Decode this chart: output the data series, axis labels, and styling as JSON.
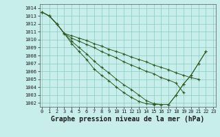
{
  "title": "Graphe pression niveau de la mer (hPa)",
  "background_color": "#c8eeec",
  "grid_color": "#88c8c0",
  "line_color": "#2d5a1e",
  "ylim": [
    1001.5,
    1014.5
  ],
  "xlim": [
    -0.3,
    23.3
  ],
  "yticks": [
    1002,
    1003,
    1004,
    1005,
    1006,
    1007,
    1008,
    1009,
    1010,
    1011,
    1012,
    1013,
    1014
  ],
  "xticks": [
    0,
    1,
    2,
    3,
    4,
    5,
    6,
    7,
    8,
    9,
    10,
    11,
    12,
    13,
    14,
    15,
    16,
    17,
    18,
    19,
    20,
    21,
    22,
    23
  ],
  "series": [
    [
      1013.5,
      1013.0,
      1012.0,
      1010.8,
      1009.5,
      1008.5,
      1007.5,
      1006.3,
      1005.5,
      1004.8,
      1004.0,
      1003.3,
      1002.7,
      1002.2,
      1001.9,
      1001.8,
      1001.8,
      1001.8,
      1003.0,
      1004.4,
      1005.5,
      1007.0,
      1008.5,
      null
    ],
    [
      1013.5,
      1013.0,
      1012.0,
      1010.8,
      1009.8,
      1009.0,
      1008.2,
      1007.3,
      1006.5,
      1005.8,
      1005.0,
      1004.3,
      1003.7,
      1003.0,
      1002.3,
      1001.9,
      1001.8,
      1001.8,
      1003.0,
      1004.4,
      1005.5,
      1007.0,
      1008.5,
      null
    ],
    [
      1013.5,
      1013.0,
      1012.0,
      1010.8,
      1010.2,
      1009.8,
      1009.4,
      1009.0,
      1008.5,
      1008.1,
      1007.7,
      1007.2,
      1006.8,
      1006.4,
      1006.0,
      1005.7,
      1005.2,
      1004.9,
      1004.5,
      1003.3,
      null,
      null,
      null,
      null
    ],
    [
      1013.5,
      1013.0,
      1012.0,
      1010.8,
      1010.5,
      1010.2,
      1009.9,
      1009.5,
      1009.2,
      1008.8,
      1008.5,
      1008.2,
      1007.8,
      1007.5,
      1007.2,
      1006.8,
      1006.5,
      1006.2,
      1005.8,
      1005.5,
      1005.2,
      1005.0,
      null,
      null
    ]
  ],
  "title_fontsize": 7,
  "tick_fontsize": 5,
  "marker": "+"
}
